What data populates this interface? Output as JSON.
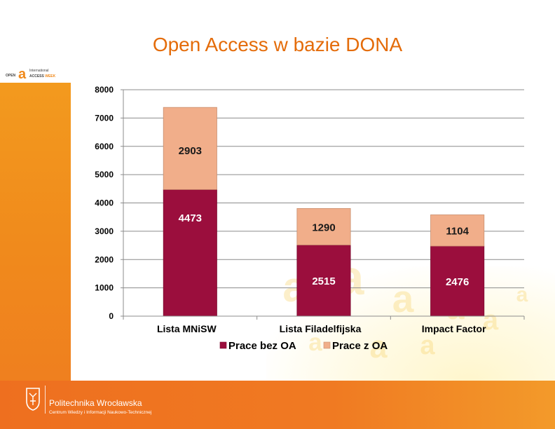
{
  "slide": {
    "title": "Open Access w bazie DONA",
    "logo_top": {
      "word1": "OPEN",
      "word2": "International",
      "word3a": "ACCESS",
      "word3b": "WEEK",
      "icon": "open-lock-a-icon"
    },
    "footer": {
      "name": "Politechnika Wrocławska",
      "subtitle": "Centrum Wiedzy i Informacji Naukowo-Technicznej",
      "icon": "university-crest-icon"
    },
    "colors": {
      "title": "#e46c0a",
      "orange": "#f08a1c",
      "series_bez": "#9b0e3d",
      "series_z": "#f1ae8a"
    }
  },
  "chart_data": {
    "type": "bar",
    "stacked": true,
    "title": "",
    "xlabel": "",
    "ylabel": "",
    "categories": [
      "Lista MNiSW",
      "Lista Filadelfijska",
      "Impact Factor"
    ],
    "series": [
      {
        "name": "Prace bez OA",
        "values": [
          4473,
          2515,
          2476
        ],
        "color": "#9b0e3d"
      },
      {
        "name": "Prace z OA",
        "values": [
          2903,
          1290,
          1104
        ],
        "color": "#f1ae8a"
      }
    ],
    "ylim": [
      0,
      8000
    ],
    "yticks": [
      0,
      1000,
      2000,
      3000,
      4000,
      5000,
      6000,
      7000,
      8000
    ],
    "grid": true,
    "legend": "bottom"
  }
}
